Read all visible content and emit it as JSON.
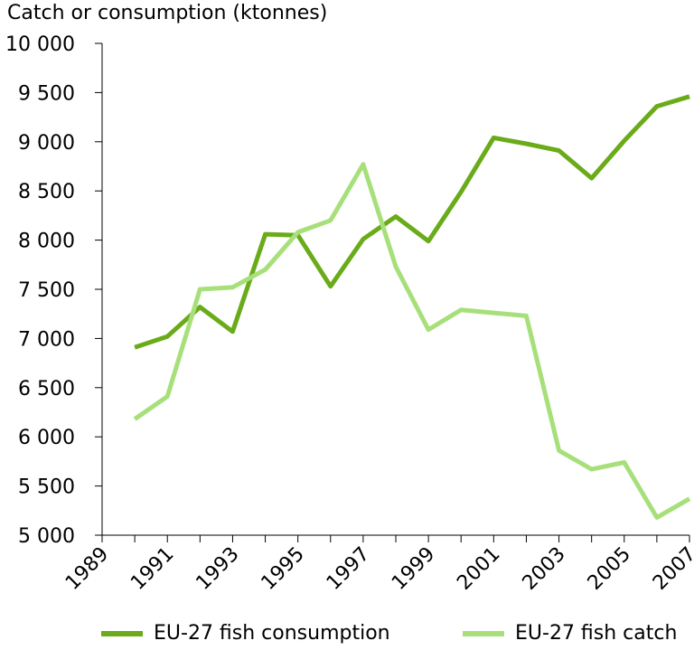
{
  "chart_data": {
    "type": "line",
    "ylabel": "Catch or consumption (ktonnes)",
    "ylim": [
      5000,
      10000
    ],
    "yticks": [
      5000,
      5500,
      6000,
      6500,
      7000,
      7500,
      8000,
      8500,
      9000,
      9500,
      10000
    ],
    "ytick_labels": [
      "5 000",
      "5 500",
      "6 000",
      "6 500",
      "7 000",
      "7 500",
      "8 000",
      "8 500",
      "9 000",
      "9 500",
      "10 000"
    ],
    "xlim": [
      1989,
      2007
    ],
    "xticks": [
      "1989",
      "1991",
      "1993",
      "1995",
      "1997",
      "1999",
      "2001",
      "2003",
      "2005",
      "2007"
    ],
    "x": [
      1990,
      1991,
      1992,
      1993,
      1994,
      1995,
      1996,
      1997,
      1998,
      1999,
      2000,
      2001,
      2002,
      2003,
      2004,
      2005,
      2006,
      2007
    ],
    "series": [
      {
        "name": "EU-27 fish consumption",
        "color": "#6aab19",
        "values": [
          6910,
          7020,
          7320,
          7070,
          8060,
          8050,
          7530,
          8010,
          8240,
          7990,
          8490,
          9040,
          8980,
          8910,
          8630,
          9010,
          9360,
          9460
        ]
      },
      {
        "name": "EU-27 fish catch",
        "color": "#a7e07a",
        "values": [
          6180,
          6410,
          7500,
          7520,
          7700,
          8080,
          8200,
          8770,
          7730,
          7090,
          7290,
          7260,
          7230,
          5860,
          5670,
          5740,
          5180,
          5370
        ]
      }
    ],
    "legend_position": "bottom",
    "grid": false
  }
}
